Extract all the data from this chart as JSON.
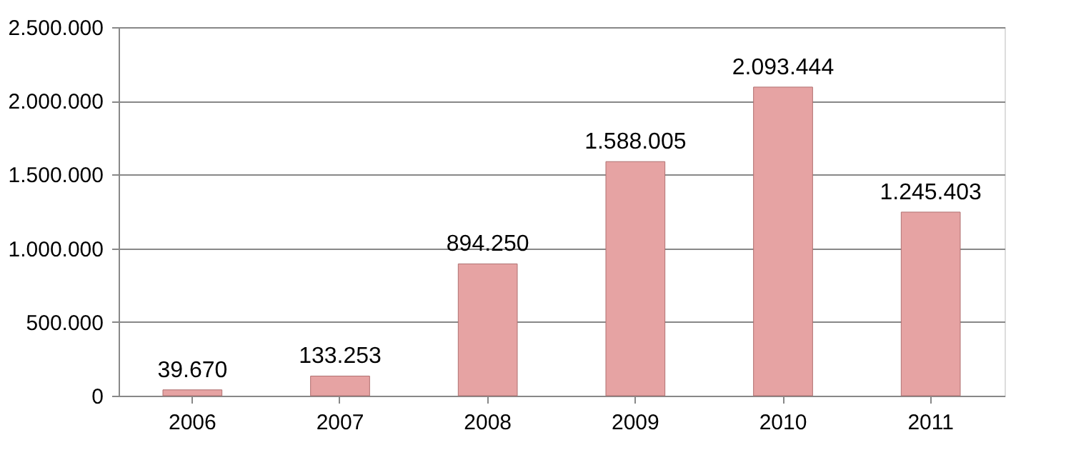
{
  "chart_data": {
    "type": "bar",
    "categories": [
      "2006",
      "2007",
      "2008",
      "2009",
      "2010",
      "2011"
    ],
    "values": [
      39670,
      133253,
      894250,
      1588005,
      2093444,
      1245403
    ],
    "value_labels": [
      "39.670",
      "133.253",
      "894.250",
      "1.588.005",
      "2.093.444",
      "1.245.403"
    ],
    "color": "#e6a3a3",
    "ylim": [
      0,
      2500000
    ],
    "yticks": [
      {
        "value": 0,
        "label": "0"
      },
      {
        "value": 500000,
        "label": "500.000"
      },
      {
        "value": 1000000,
        "label": "1.000.000"
      },
      {
        "value": 1500000,
        "label": "1.500.000"
      },
      {
        "value": 2000000,
        "label": "2.000.000"
      },
      {
        "value": 2500000,
        "label": "2.500.000"
      }
    ],
    "grid": "y"
  }
}
